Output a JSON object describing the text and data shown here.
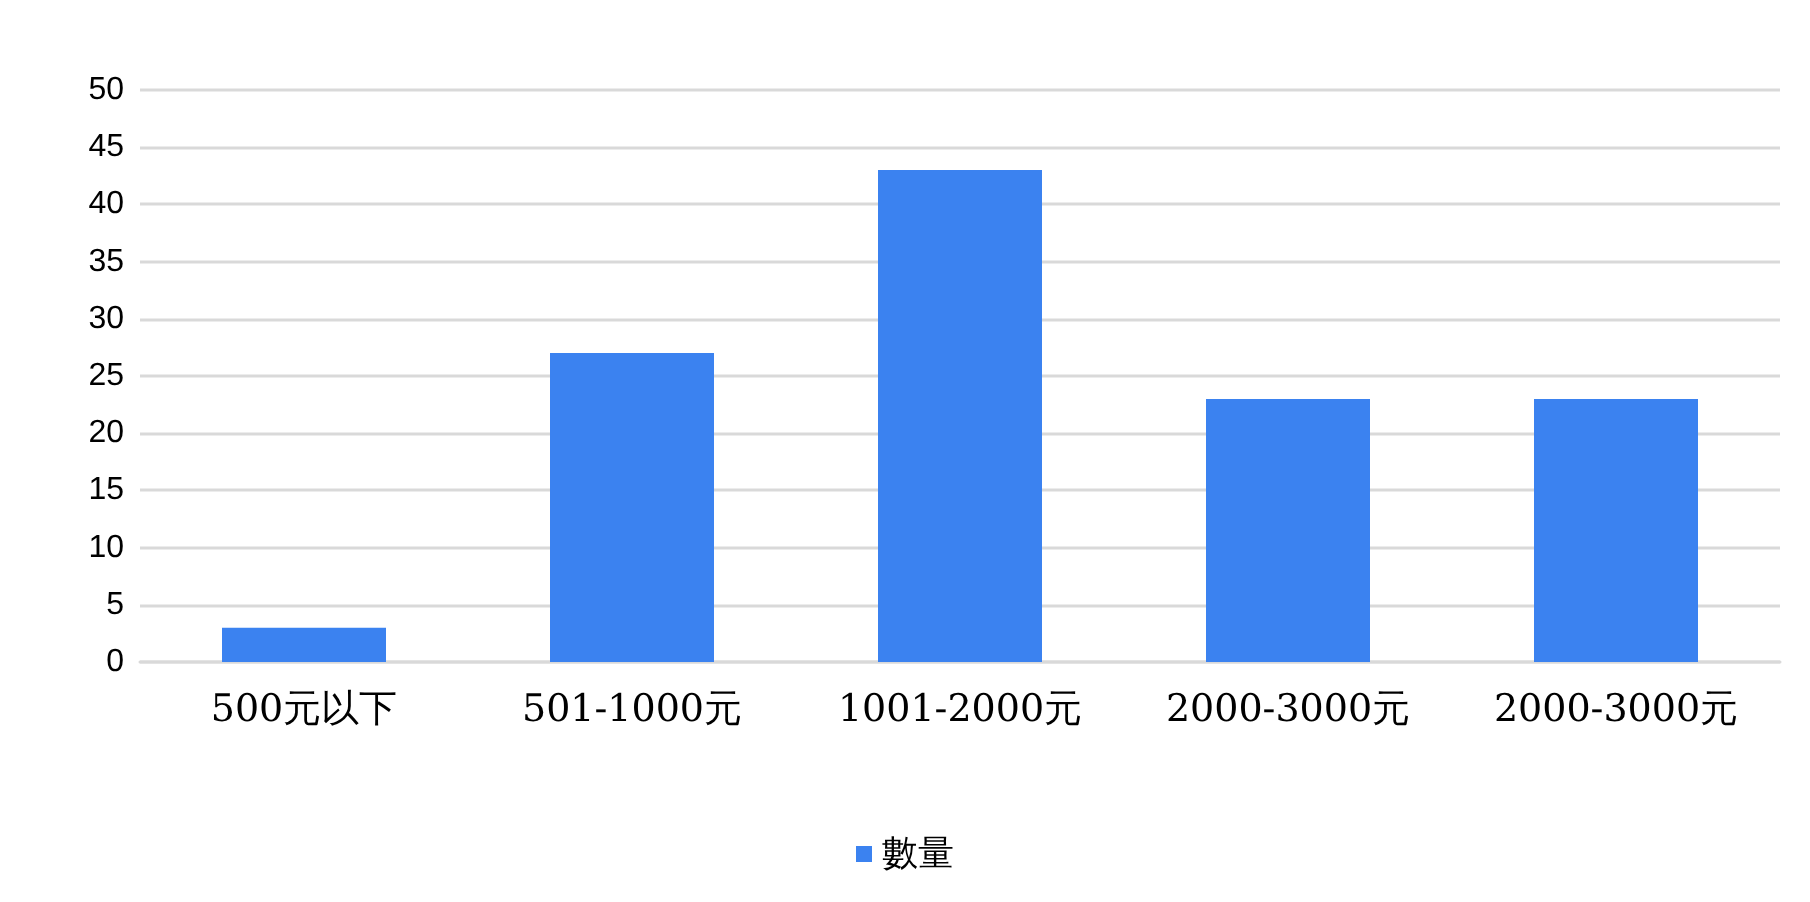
{
  "chart_data": {
    "type": "bar",
    "categories": [
      "500元以下",
      "501-1000元",
      "1001-2000元",
      "2000-3000元",
      "2000-3000元"
    ],
    "series": [
      {
        "name": "數量",
        "color": "#3b82f0",
        "values": [
          3,
          27,
          43,
          23,
          23
        ]
      }
    ],
    "ylim": [
      0,
      50
    ],
    "yticks": [
      0,
      5,
      10,
      15,
      20,
      25,
      30,
      35,
      40,
      45,
      50
    ],
    "grid": "y",
    "legend": "bottom"
  }
}
